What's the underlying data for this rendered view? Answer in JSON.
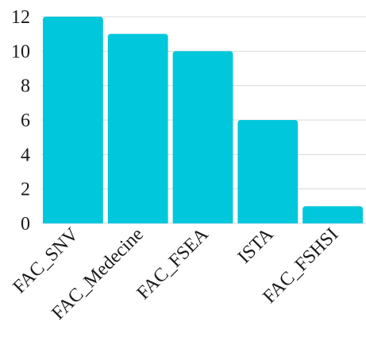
{
  "chart_data": {
    "type": "bar",
    "categories": [
      "FAC_SNV",
      "FAC_Medecine",
      "FAC_FSEA",
      "ISTA",
      "FAC_FSHSI"
    ],
    "values": [
      12,
      11,
      10,
      6,
      1
    ],
    "title": "",
    "xlabel": "",
    "ylabel": "",
    "ylim": [
      0,
      12
    ],
    "yticks": [
      0,
      2,
      4,
      6,
      8,
      10,
      12
    ],
    "grid": true,
    "legend": "none",
    "bar_color": "#00c7dc"
  }
}
